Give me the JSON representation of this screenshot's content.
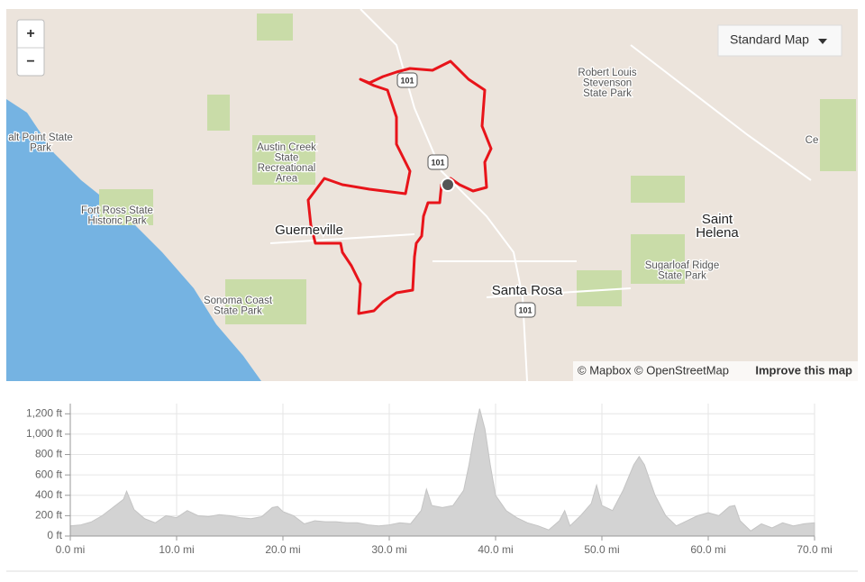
{
  "map": {
    "zoom_in": "+",
    "zoom_out": "−",
    "style_button": "Standard Map",
    "labels": [
      {
        "lines": [
          "alt Point State",
          "Park"
        ]
      },
      {
        "lines": [
          "Fort Ross State",
          "Historic Park"
        ]
      },
      {
        "lines": [
          "Sonoma Coast",
          "State Park"
        ]
      },
      {
        "lines": [
          "Austin Creek",
          "State",
          "Recreational",
          "Area"
        ]
      },
      {
        "lines": [
          "Robert Louis",
          "Stevenson",
          "State Park"
        ]
      },
      {
        "lines": [
          "Sugarloaf Ridge",
          "State Park"
        ]
      },
      {
        "lines": [
          "Ce"
        ]
      }
    ],
    "cities": [
      {
        "lines": [
          "Guerneville"
        ]
      },
      {
        "lines": [
          "Santa Rosa"
        ]
      },
      {
        "lines": [
          "Saint",
          "Helena"
        ]
      }
    ],
    "shields": [
      "101",
      "101",
      "101"
    ],
    "attribution": "© Mapbox © OpenStreetMap",
    "improve": "Improve this map"
  },
  "chart_data": {
    "type": "area",
    "color": "#d3d3d3",
    "grid": true,
    "x": [
      0,
      1,
      2,
      3,
      4,
      5,
      5.3,
      6,
      7,
      8,
      9,
      10,
      11,
      12,
      13,
      14,
      15,
      16,
      17,
      18,
      19,
      19.5,
      20,
      21,
      22,
      23,
      24,
      25,
      26,
      27,
      28,
      29,
      30,
      31,
      32,
      33,
      33.5,
      34,
      35,
      36,
      37,
      37.5,
      38,
      38.5,
      39,
      39.5,
      40,
      41,
      42,
      43,
      44,
      45,
      46,
      46.5,
      47,
      48,
      49,
      49.5,
      50,
      51,
      52,
      53,
      53.5,
      54,
      55,
      56,
      57,
      58,
      59,
      60,
      61,
      62,
      62.5,
      63,
      64,
      65,
      66,
      67,
      68,
      69,
      70
    ],
    "values": [
      100,
      110,
      140,
      200,
      280,
      360,
      440,
      260,
      170,
      130,
      200,
      180,
      250,
      200,
      190,
      210,
      200,
      180,
      170,
      190,
      280,
      290,
      240,
      200,
      120,
      150,
      140,
      140,
      130,
      130,
      110,
      100,
      110,
      130,
      120,
      250,
      460,
      300,
      280,
      300,
      450,
      700,
      1000,
      1250,
      1050,
      700,
      400,
      250,
      180,
      130,
      100,
      60,
      150,
      250,
      100,
      200,
      320,
      500,
      300,
      250,
      450,
      700,
      780,
      700,
      400,
      200,
      100,
      150,
      200,
      230,
      200,
      290,
      300,
      150,
      50,
      120,
      80,
      130,
      100,
      120,
      130
    ],
    "xlim": [
      0,
      70
    ],
    "ylim": [
      0,
      1300
    ],
    "xticks": [
      {
        "value": 0,
        "label": "0.0 mi"
      },
      {
        "value": 10,
        "label": "10.0 mi"
      },
      {
        "value": 20,
        "label": "20.0 mi"
      },
      {
        "value": 30,
        "label": "30.0 mi"
      },
      {
        "value": 40,
        "label": "40.0 mi"
      },
      {
        "value": 50,
        "label": "50.0 mi"
      },
      {
        "value": 60,
        "label": "60.0 mi"
      },
      {
        "value": 70,
        "label": "70.0 mi"
      }
    ],
    "yticks": [
      {
        "value": 0,
        "label": "0 ft"
      },
      {
        "value": 200,
        "label": "200 ft"
      },
      {
        "value": 400,
        "label": "400 ft"
      },
      {
        "value": 600,
        "label": "600 ft"
      },
      {
        "value": 800,
        "label": "800 ft"
      },
      {
        "value": 1000,
        "label": "1,000 ft"
      },
      {
        "value": 1200,
        "label": "1,200 ft"
      }
    ]
  }
}
